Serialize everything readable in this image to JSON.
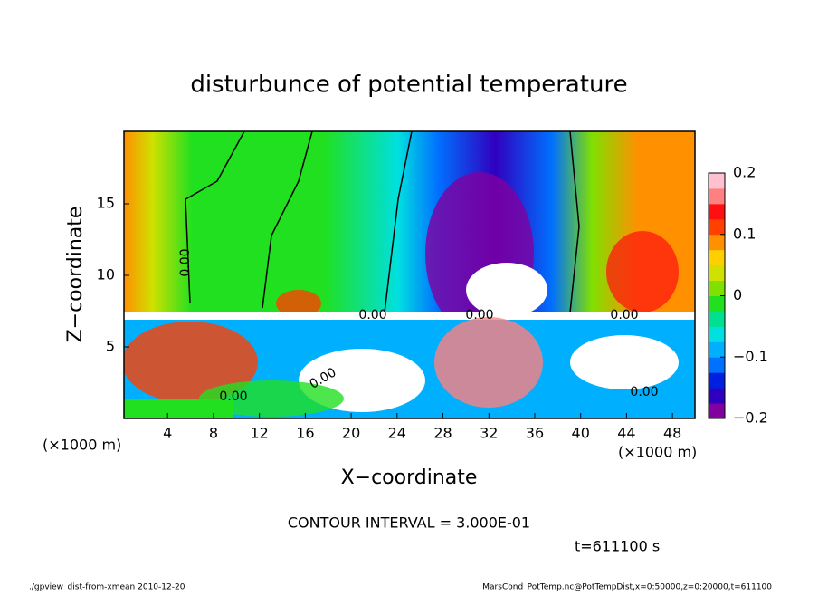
{
  "chart_data": {
    "type": "contour",
    "title": "disturbunce of potential temperature",
    "x_label": "X−coordinate",
    "y_label": "Z−coordinate",
    "x_unit": "(×1000 m)",
    "y_unit": "(×1000 m)",
    "xlim": [
      0,
      50
    ],
    "xticks": [
      4,
      8,
      12,
      16,
      20,
      24,
      28,
      32,
      36,
      40,
      44,
      48
    ],
    "ylim": [
      0,
      20
    ],
    "yticks": [
      5,
      10,
      15
    ],
    "colorbar_lim": [
      -0.2,
      0.2
    ],
    "colorbar_ticks": [
      {
        "value": 0.2,
        "label": "0.2"
      },
      {
        "value": 0.1,
        "label": "0.1"
      },
      {
        "value": 0,
        "label": "0"
      },
      {
        "value": -0.1,
        "label": "−0.1"
      },
      {
        "value": -0.2,
        "label": "−0.2"
      }
    ],
    "colormap": [
      "#8000a0",
      "#3000c0",
      "#0020e0",
      "#0070ff",
      "#00b0ff",
      "#00e0e0",
      "#00e090",
      "#20e020",
      "#80e000",
      "#d0e000",
      "#ffd000",
      "#ff9000",
      "#ff4000",
      "#ff1010",
      "#ff8080",
      "#ffc0d0"
    ],
    "contour_labels": [
      "0.00",
      "0.00",
      "0.00",
      "0.00",
      "0.00",
      "0.00",
      "0.00"
    ],
    "contour_interval": "CONTOUR INTERVAL = 3.000E-01",
    "time_label": "t=611100 s",
    "footer_left": "./gpview_dist-from-xmean  2010-12-20",
    "footer_right": "MarsCond_PotTemp.nc@PotTempDist,x=0:50000,z=0:20000,t=611100"
  }
}
